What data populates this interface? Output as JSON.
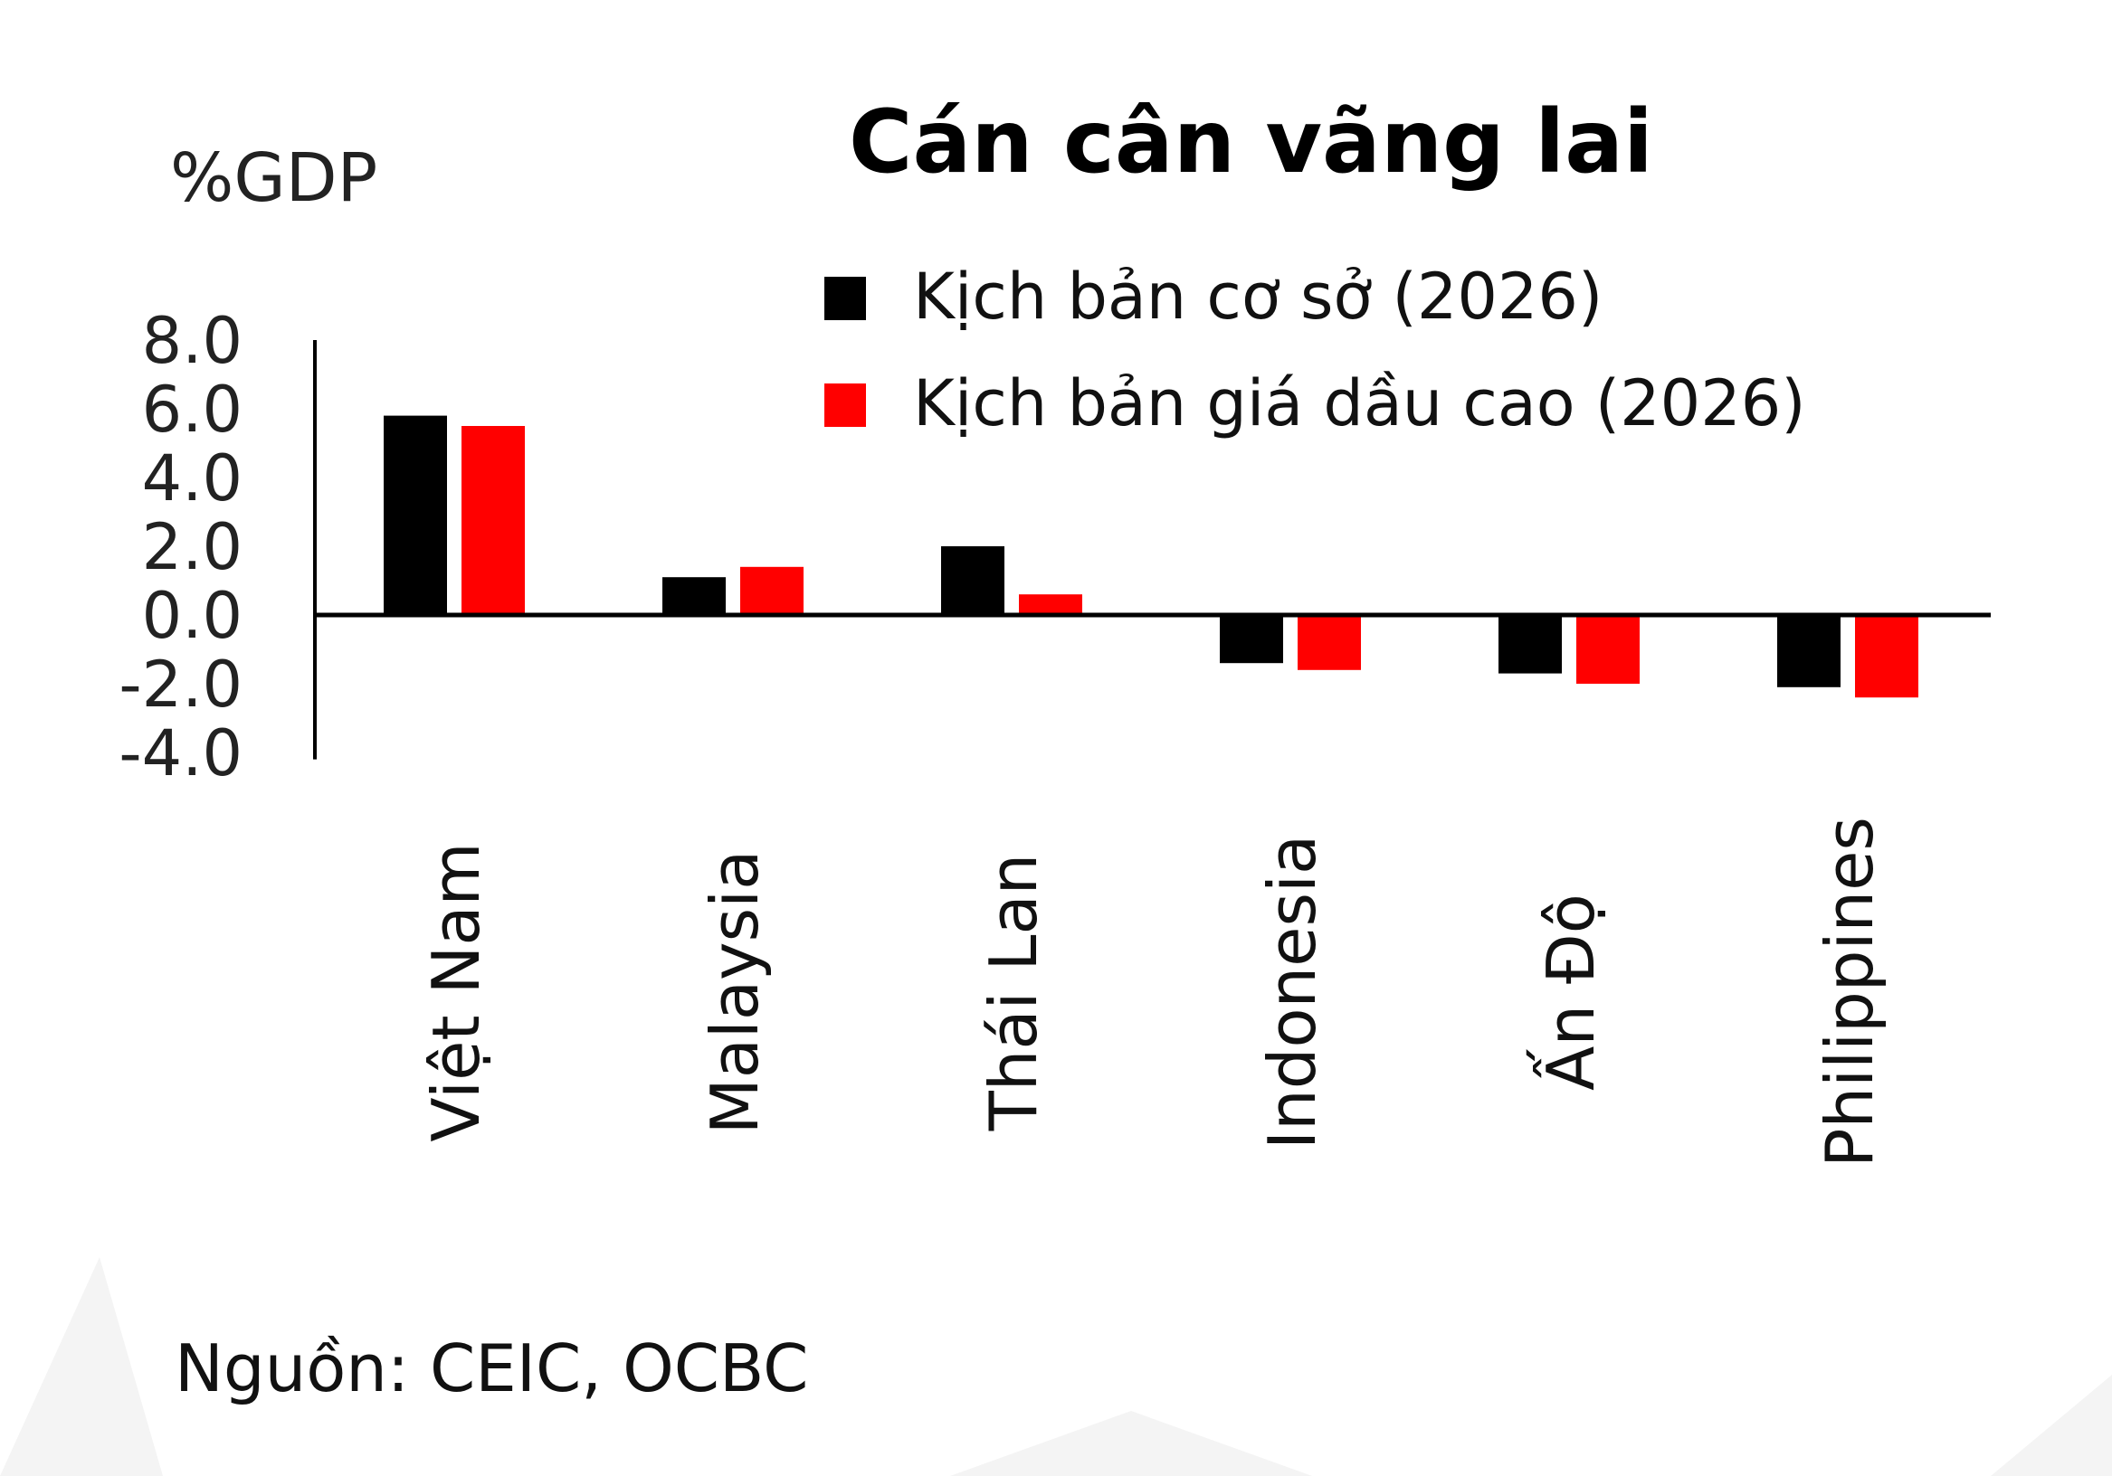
{
  "chart_data": {
    "type": "bar",
    "title": "Cán cân vãng lai",
    "ylabel": "%GDP",
    "xlabel": "",
    "ylim": [
      -4.0,
      8.0
    ],
    "yticks": [
      "8.0",
      "6.0",
      "4.0",
      "2.0",
      "0.0",
      "-2.0",
      "-4.0"
    ],
    "ytick_values": [
      8,
      6,
      4,
      2,
      0,
      -2,
      -4
    ],
    "categories": [
      "Việt Nam",
      "Malaysia",
      "Thái Lan",
      "Indonesia",
      "Ấn Độ",
      "Philippines"
    ],
    "series": [
      {
        "name": "Kịch bản cơ sở (2026)",
        "color": "#000000",
        "values": [
          5.8,
          1.1,
          2.0,
          -1.4,
          -1.7,
          -2.1
        ]
      },
      {
        "name": "Kịch bản giá dầu cao (2026)",
        "color": "#ff0000",
        "values": [
          5.5,
          1.4,
          0.6,
          -1.6,
          -2.0,
          -2.4
        ]
      }
    ],
    "grid": false,
    "legend_position": "top-right",
    "category_label_orientation": "vertical"
  },
  "source": "Nguồn: CEIC, OCBC"
}
